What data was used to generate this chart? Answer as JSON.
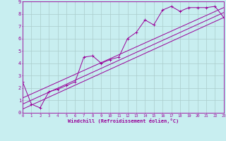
{
  "xlabel": "Windchill (Refroidissement éolien,°C)",
  "ylabel": "",
  "bg_color": "#c8eef0",
  "line_color": "#990099",
  "grid_color": "#aacccc",
  "xlim": [
    0,
    23
  ],
  "ylim": [
    0,
    9
  ],
  "xticks": [
    0,
    1,
    2,
    3,
    4,
    5,
    6,
    7,
    8,
    9,
    10,
    11,
    12,
    13,
    14,
    15,
    16,
    17,
    18,
    19,
    20,
    21,
    22,
    23
  ],
  "yticks": [
    0,
    1,
    2,
    3,
    4,
    5,
    6,
    7,
    8,
    9
  ],
  "scatter_x": [
    0,
    1,
    2,
    3,
    4,
    5,
    6,
    7,
    8,
    9,
    10,
    11,
    12,
    13,
    14,
    15,
    16,
    17,
    18,
    19,
    20,
    21,
    22,
    23
  ],
  "scatter_y": [
    2.5,
    0.7,
    0.4,
    1.7,
    1.9,
    2.2,
    2.5,
    4.5,
    4.6,
    4.0,
    4.3,
    4.5,
    6.0,
    6.5,
    7.5,
    7.1,
    8.3,
    8.6,
    8.2,
    8.5,
    8.5,
    8.5,
    8.6,
    7.7
  ],
  "line1_x": [
    0,
    23
  ],
  "line1_y": [
    0.3,
    7.7
  ],
  "line2_x": [
    0,
    23
  ],
  "line2_y": [
    0.7,
    8.1
  ],
  "line3_x": [
    0,
    23
  ],
  "line3_y": [
    1.2,
    8.5
  ]
}
